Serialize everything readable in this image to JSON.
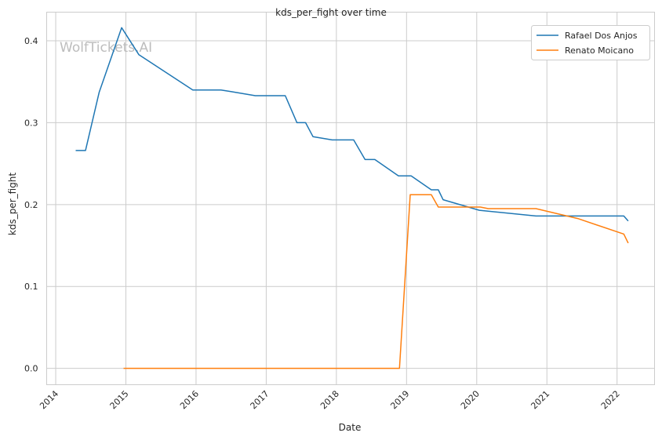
{
  "chart_data": {
    "type": "line",
    "title": "kds_per_fight over time",
    "xlabel": "Date",
    "ylabel": "kds_per_fight",
    "xlim": [
      "2013-11-15",
      "2022-07-15"
    ],
    "ylim": [
      -0.02,
      0.435
    ],
    "x_ticks": [
      "2014",
      "2015",
      "2016",
      "2017",
      "2018",
      "2019",
      "2020",
      "2021",
      "2022"
    ],
    "y_ticks": [
      "0.0",
      "0.1",
      "0.2",
      "0.3",
      "0.4"
    ],
    "grid": true,
    "legend_position": "top-right",
    "watermark": "WolfTickets.AI",
    "series": [
      {
        "name": "Rafael Dos Anjos",
        "color": "#1f77b4",
        "points": [
          [
            "2014-04-15",
            0.266
          ],
          [
            "2014-06-05",
            0.266
          ],
          [
            "2014-08-15",
            0.337
          ],
          [
            "2014-12-10",
            0.416
          ],
          [
            "2015-03-10",
            0.383
          ],
          [
            "2015-12-15",
            0.34
          ],
          [
            "2016-05-10",
            0.34
          ],
          [
            "2016-07-01",
            0.338
          ],
          [
            "2016-11-05",
            0.333
          ],
          [
            "2017-04-10",
            0.333
          ],
          [
            "2017-06-10",
            0.3
          ],
          [
            "2017-07-25",
            0.3
          ],
          [
            "2017-09-01",
            0.283
          ],
          [
            "2017-12-10",
            0.279
          ],
          [
            "2018-04-01",
            0.279
          ],
          [
            "2018-05-30",
            0.255
          ],
          [
            "2018-07-20",
            0.255
          ],
          [
            "2018-11-20",
            0.235
          ],
          [
            "2019-01-25",
            0.235
          ],
          [
            "2019-05-10",
            0.218
          ],
          [
            "2019-06-15",
            0.218
          ],
          [
            "2019-07-10",
            0.206
          ],
          [
            "2020-01-15",
            0.193
          ],
          [
            "2020-11-05",
            0.186
          ],
          [
            "2022-02-05",
            0.186
          ],
          [
            "2022-02-28",
            0.18
          ]
        ]
      },
      {
        "name": "Renato Moicano",
        "color": "#ff7f0e",
        "points": [
          [
            "2014-12-20",
            0.0
          ],
          [
            "2018-11-25",
            0.0
          ],
          [
            "2019-01-20",
            0.212
          ],
          [
            "2019-05-10",
            0.212
          ],
          [
            "2019-06-15",
            0.197
          ],
          [
            "2020-01-20",
            0.197
          ],
          [
            "2020-03-01",
            0.195
          ],
          [
            "2020-11-05",
            0.195
          ],
          [
            "2021-06-10",
            0.183
          ],
          [
            "2022-02-05",
            0.164
          ],
          [
            "2022-02-28",
            0.153
          ]
        ]
      }
    ]
  }
}
